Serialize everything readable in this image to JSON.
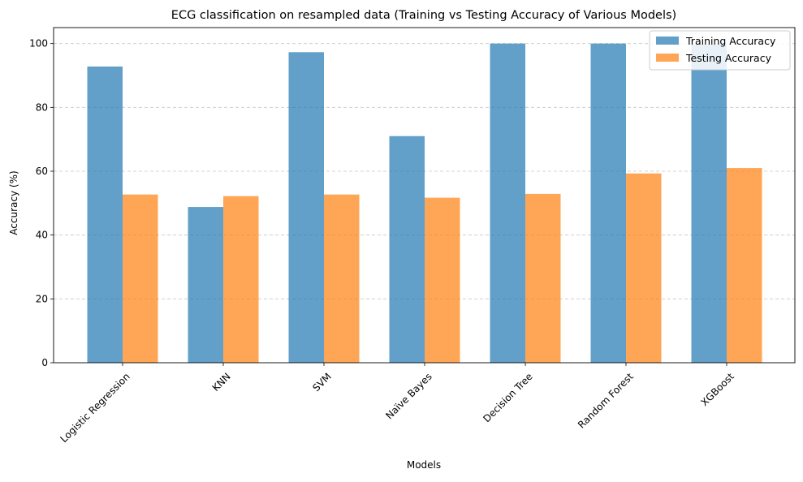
{
  "chart_data": {
    "type": "bar",
    "title": "ECG classification on resampled data (Training vs Testing Accuracy of Various Models)",
    "xlabel": "Models",
    "ylabel": "Accuracy (%)",
    "categories": [
      "Logistic Regression",
      "KNN",
      "SVM",
      "Naïve Bayes",
      "Decision Tree",
      "Random Forest",
      "XGBoost"
    ],
    "series": [
      {
        "name": "Training Accuracy",
        "color": "#1f77b4",
        "values": [
          92.8,
          48.8,
          97.3,
          71.0,
          100.0,
          100.0,
          99.7
        ]
      },
      {
        "name": "Testing Accuracy",
        "color": "#ff7f0e",
        "values": [
          52.7,
          52.2,
          52.7,
          51.7,
          52.9,
          59.3,
          61.0
        ]
      }
    ],
    "ylim": [
      0,
      105
    ],
    "yticks": [
      "0",
      "20",
      "40",
      "60",
      "80",
      "100"
    ],
    "grid": "y-dashed",
    "legend_position": "top-right"
  }
}
